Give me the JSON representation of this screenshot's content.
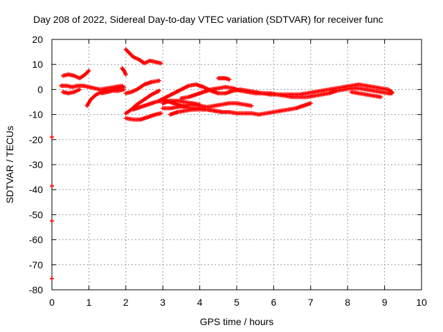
{
  "chart_data": {
    "type": "scatter",
    "title": "Day 208 of 2022, Sidereal Day-to-day VTEC variation (SDTVAR) for receiver func",
    "xlabel": "GPS time / hours",
    "ylabel": "SDTVAR / TECUs",
    "xlim": [
      0,
      10
    ],
    "ylim": [
      -80,
      20
    ],
    "xticks": [
      0,
      1,
      2,
      3,
      4,
      5,
      6,
      7,
      8,
      9,
      10
    ],
    "yticks": [
      20,
      10,
      0,
      -10,
      -20,
      -30,
      -40,
      -50,
      -60,
      -70,
      -80
    ],
    "grid": true,
    "marker": "plus",
    "series_color": "#ff0000",
    "tracks": [
      {
        "name": "t1",
        "x": [
          0.3,
          0.45,
          0.6,
          0.75,
          0.9,
          1.0
        ],
        "y": [
          5.5,
          6,
          5.5,
          4.5,
          6,
          7.5
        ]
      },
      {
        "name": "t2",
        "x": [
          0.25,
          0.4,
          0.55,
          0.7,
          0.85,
          1.0,
          1.15,
          1.3,
          1.5,
          1.7,
          1.9
        ],
        "y": [
          1.5,
          1.5,
          1,
          1.5,
          1.5,
          1,
          0.5,
          0,
          0.5,
          1,
          1.5
        ]
      },
      {
        "name": "t3",
        "x": [
          0.3,
          0.45,
          0.6,
          0.75
        ],
        "y": [
          -1,
          -1.5,
          -1,
          0
        ]
      },
      {
        "name": "t4",
        "x": [
          0.95,
          1.05,
          1.2,
          1.35,
          1.5,
          1.65,
          1.8,
          1.95
        ],
        "y": [
          -6.5,
          -4,
          -2,
          -1,
          -0.5,
          0,
          0.5,
          1
        ]
      },
      {
        "name": "t5",
        "x": [
          1.35,
          1.5,
          1.65,
          1.8,
          1.95
        ],
        "y": [
          -1.5,
          -1,
          -0.5,
          -0.5,
          0
        ]
      },
      {
        "name": "t6",
        "x": [
          1.9,
          1.95,
          2.0
        ],
        "y": [
          8.5,
          7.5,
          6
        ]
      },
      {
        "name": "t7",
        "x": [
          2.0,
          2.1,
          2.2,
          2.35,
          2.5,
          2.65,
          2.8,
          2.95
        ],
        "y": [
          16,
          14.5,
          13,
          12,
          10.5,
          11.5,
          11,
          10.5
        ]
      },
      {
        "name": "t8",
        "x": [
          2.0,
          2.15,
          2.3,
          2.5,
          2.7,
          2.9
        ],
        "y": [
          -1.5,
          -1,
          0,
          2,
          3,
          3.5
        ]
      },
      {
        "name": "t9",
        "x": [
          2.0,
          2.15,
          2.3,
          2.5,
          2.7,
          2.9
        ],
        "y": [
          -9.5,
          -8,
          -6,
          -4,
          -2,
          -0.5
        ]
      },
      {
        "name": "t10",
        "x": [
          2.0,
          2.2,
          2.4,
          2.6,
          2.8,
          2.95
        ],
        "y": [
          -11.5,
          -12,
          -12,
          -11,
          -10,
          -9.5
        ]
      },
      {
        "name": "t11",
        "x": [
          2.2,
          2.4,
          2.6,
          2.8,
          2.95
        ],
        "y": [
          -8,
          -7,
          -6,
          -5,
          -4.5
        ]
      },
      {
        "name": "t12",
        "x": [
          2.9,
          3.1,
          3.3,
          3.5,
          3.7,
          3.9,
          4.1,
          4.3,
          4.5,
          4.7,
          4.9,
          5.1,
          5.3,
          5.5,
          5.7,
          5.9,
          6.1,
          6.3,
          6.5,
          6.7,
          6.9,
          7.1,
          7.3,
          7.5,
          7.7,
          7.9,
          8.1,
          8.3,
          8.5,
          8.7,
          8.9,
          9.1,
          9.2
        ],
        "y": [
          -4.5,
          -3,
          -1.5,
          0,
          1.5,
          2,
          1,
          -0.5,
          -1.5,
          -1.5,
          -0.5,
          0,
          -0.5,
          -1,
          -1.5,
          -1.5,
          -2,
          -2.5,
          -3,
          -3,
          -3,
          -2.5,
          -2,
          -1.5,
          -0.5,
          0,
          0.5,
          0.5,
          0,
          -0.5,
          -1,
          -1.5,
          -1.5
        ]
      },
      {
        "name": "t13",
        "x": [
          3.0,
          3.2,
          3.4,
          3.6,
          3.8,
          4.0,
          4.2,
          4.4,
          4.6,
          4.8,
          5.0,
          5.2,
          5.4,
          5.6,
          5.8,
          6.0,
          6.2,
          6.4,
          6.6,
          6.8,
          7.0
        ],
        "y": [
          -4,
          -5,
          -6,
          -7,
          -7.5,
          -7.5,
          -8,
          -8.5,
          -9,
          -9,
          -9.5,
          -9.5,
          -9.5,
          -10,
          -9.5,
          -9,
          -8.5,
          -8,
          -7.5,
          -6.5,
          -5.5
        ]
      },
      {
        "name": "t14",
        "x": [
          3.0,
          3.2,
          3.4,
          3.6,
          3.8,
          4.0,
          4.2,
          4.4,
          4.6,
          4.8,
          5.0,
          5.2,
          5.4
        ],
        "y": [
          -7.5,
          -7.5,
          -7,
          -6.5,
          -6,
          -6.5,
          -7,
          -6.5,
          -6,
          -5.5,
          -5.5,
          -6,
          -6.5
        ]
      },
      {
        "name": "t15",
        "x": [
          3.0,
          3.2,
          3.4,
          3.6,
          3.8,
          4.0
        ],
        "y": [
          -5.5,
          -4.5,
          -4.5,
          -5,
          -5.5,
          -6
        ]
      },
      {
        "name": "t16",
        "x": [
          3.2,
          3.4,
          3.6,
          3.8,
          4.0,
          4.2,
          4.4,
          4.6
        ],
        "y": [
          -10,
          -9,
          -8.5,
          -8,
          -8,
          -8,
          -8.5,
          -9
        ]
      },
      {
        "name": "t17",
        "x": [
          3.5,
          3.7,
          3.9,
          4.1,
          4.3,
          4.5,
          4.7,
          4.9,
          5.1,
          5.3,
          5.5,
          5.7,
          5.9,
          6.1,
          6.3,
          6.5,
          6.7,
          6.9,
          7.1,
          7.3,
          7.5,
          7.7,
          7.9,
          8.1,
          8.3,
          8.5,
          8.7,
          8.9,
          9.1,
          9.2
        ],
        "y": [
          -3.5,
          -3,
          -2,
          -1,
          0,
          0.5,
          1,
          0.5,
          -0.5,
          -1,
          -1.5,
          -1.5,
          -2,
          -2,
          -2,
          -2,
          -2,
          -1.5,
          -1,
          -0.5,
          0,
          0.5,
          1,
          1.5,
          2,
          1.5,
          1,
          0.5,
          0,
          -1
        ]
      },
      {
        "name": "t18",
        "x": [
          4.5,
          4.6,
          4.7,
          4.8
        ],
        "y": [
          4.5,
          4.5,
          4.5,
          4
        ]
      },
      {
        "name": "t19",
        "x": [
          8.1,
          8.3,
          8.5,
          8.7,
          8.9
        ],
        "y": [
          -1,
          -1.5,
          -2,
          -2.5,
          -3
        ]
      },
      {
        "name": "t20",
        "x": [
          0.0
        ],
        "y": [
          -19
        ]
      },
      {
        "name": "t21",
        "x": [
          0.0
        ],
        "y": [
          -38.5
        ]
      },
      {
        "name": "t22",
        "x": [
          0.0
        ],
        "y": [
          -52.5
        ]
      },
      {
        "name": "t23",
        "x": [
          0.0
        ],
        "y": [
          -75.5
        ]
      }
    ]
  }
}
